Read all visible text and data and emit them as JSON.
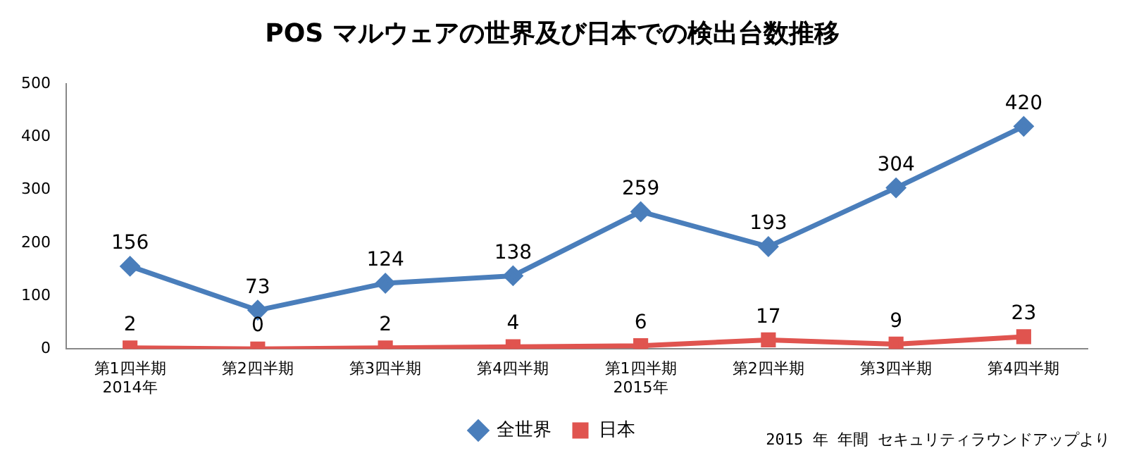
{
  "chart_data": {
    "type": "line",
    "title": "POS マルウェアの世界及び日本での検出台数推移",
    "categories": [
      "第1四半期\n2014年",
      "第2四半期",
      "第3四半期",
      "第4四半期",
      "第1四半期\n2015年",
      "第2四半期",
      "第3四半期",
      "第4四半期"
    ],
    "series": [
      {
        "name": "全世界",
        "color": "#4a7ebb",
        "marker": "diamond",
        "values": [
          156,
          73,
          124,
          138,
          259,
          193,
          304,
          420
        ]
      },
      {
        "name": "日本",
        "color": "#e0544f",
        "marker": "square",
        "values": [
          2,
          0,
          2,
          4,
          6,
          17,
          9,
          23
        ]
      }
    ],
    "ylim": [
      0,
      500
    ],
    "yticks": [
      0,
      100,
      200,
      300,
      400,
      500
    ],
    "grid": false,
    "legend": "bottom",
    "data_labels": true,
    "annotations": [
      "2015 年 年間 セキュリティラウンドアップより"
    ]
  }
}
